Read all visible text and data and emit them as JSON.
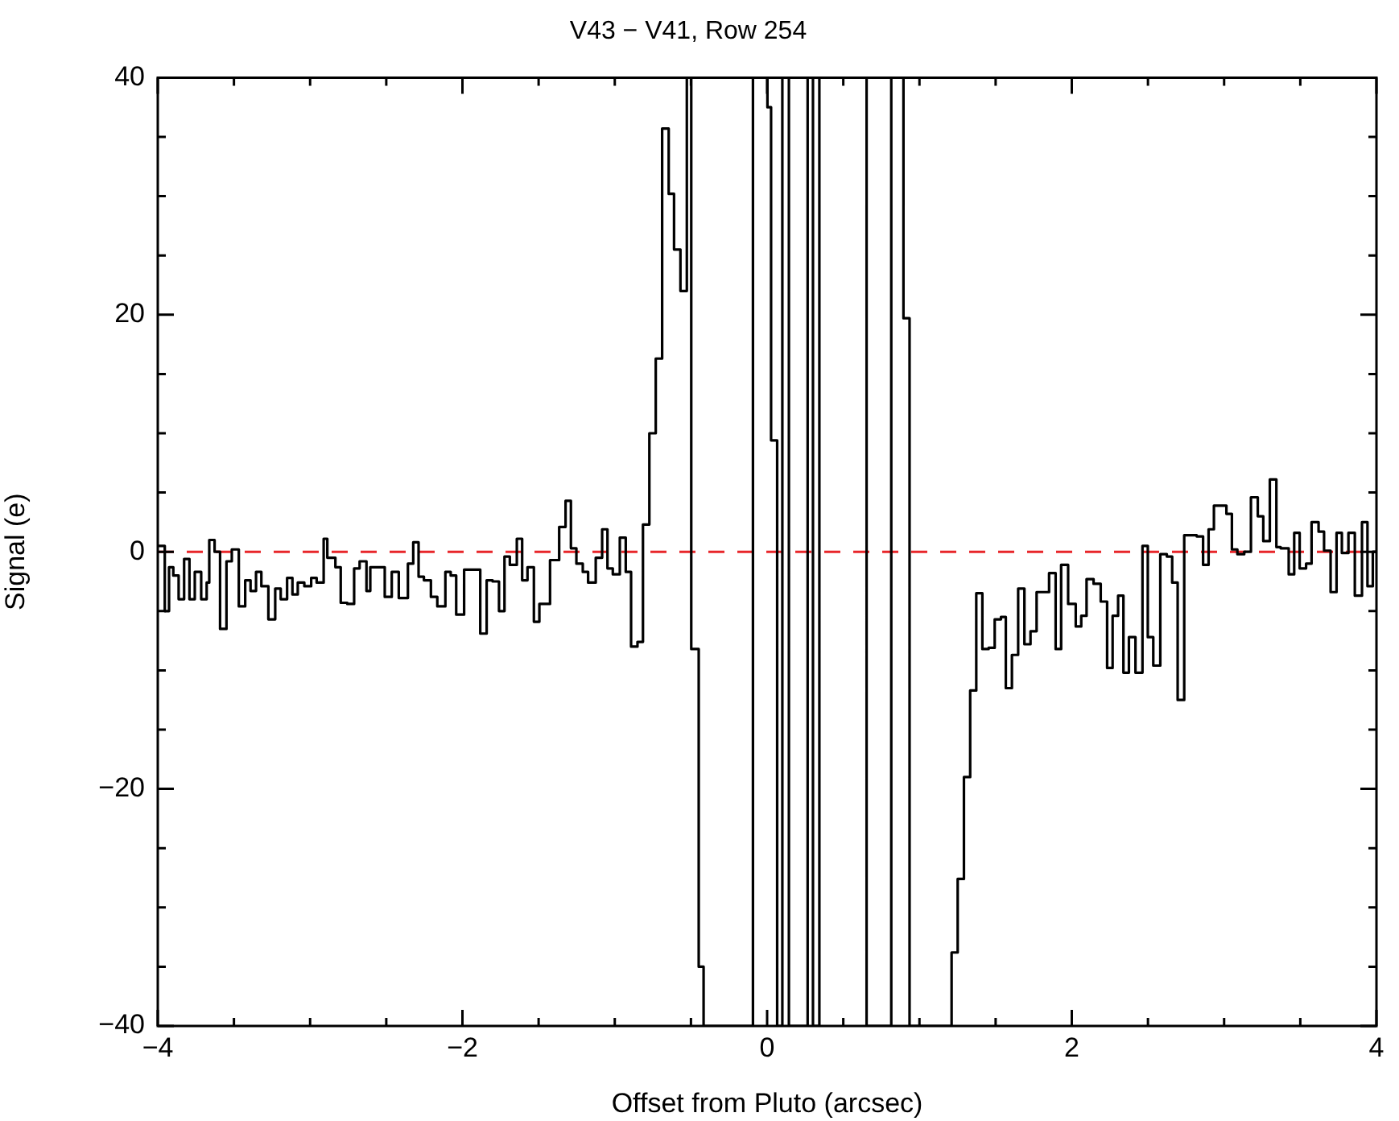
{
  "chart_data": {
    "type": "step",
    "title": "V43 − V41, Row 254",
    "xlabel": "Offset from Pluto (arcsec)",
    "ylabel": "Signal (e)",
    "xlim": [
      -4,
      4
    ],
    "ylim": [
      -40,
      40
    ],
    "xticks": [
      {
        "value": -4,
        "label": "−4"
      },
      {
        "value": -3.5,
        "label": null
      },
      {
        "value": -3,
        "label": null
      },
      {
        "value": -2.5,
        "label": null
      },
      {
        "value": -2,
        "label": "−2"
      },
      {
        "value": -1.5,
        "label": null
      },
      {
        "value": -1,
        "label": null
      },
      {
        "value": -0.5,
        "label": null
      },
      0,
      {
        "value": 0.5,
        "label": null
      },
      {
        "value": 1,
        "label": null
      },
      {
        "value": 1.5,
        "label": null
      },
      2,
      {
        "value": 2.5,
        "label": null
      },
      {
        "value": 3,
        "label": null
      },
      {
        "value": 3.5,
        "label": null
      },
      4
    ],
    "yticks": [
      {
        "value": -40,
        "label": "−40"
      },
      {
        "value": -35,
        "label": null
      },
      {
        "value": -30,
        "label": null
      },
      {
        "value": -25,
        "label": null
      },
      {
        "value": -20,
        "label": "−20"
      },
      {
        "value": -15,
        "label": null
      },
      {
        "value": -10,
        "label": null
      },
      {
        "value": -5,
        "label": null
      },
      0,
      {
        "value": 5,
        "label": null
      },
      {
        "value": 10,
        "label": null
      },
      {
        "value": 15,
        "label": null
      },
      20,
      {
        "value": 25,
        "label": null
      },
      {
        "value": 30,
        "label": null
      },
      {
        "value": 35,
        "label": null
      },
      40
    ],
    "grid": false,
    "ref_lines": [
      {
        "axis": "y",
        "value": 0,
        "color": "#e8262a",
        "line_style": "dashed"
      }
    ],
    "series": [
      {
        "color": "#000000",
        "x": [
          -4.0,
          -3.954,
          -3.926,
          -3.898,
          -3.863,
          -3.827,
          -3.792,
          -3.757,
          -3.715,
          -3.679,
          -3.662,
          -3.627,
          -3.591,
          -3.549,
          -3.514,
          -3.468,
          -3.426,
          -3.391,
          -3.355,
          -3.32,
          -3.274,
          -3.229,
          -3.193,
          -3.151,
          -3.116,
          -3.081,
          -3.038,
          -2.993,
          -2.957,
          -2.911,
          -2.887,
          -2.834,
          -2.799,
          -2.756,
          -2.711,
          -2.675,
          -2.63,
          -2.605,
          -2.57,
          -2.51,
          -2.464,
          -2.418,
          -2.358,
          -2.323,
          -2.288,
          -2.253,
          -2.207,
          -2.165,
          -2.112,
          -2.077,
          -2.041,
          -1.989,
          -1.936,
          -1.883,
          -1.841,
          -1.802,
          -1.76,
          -1.724,
          -1.689,
          -1.643,
          -1.608,
          -1.573,
          -1.531,
          -1.495,
          -1.425,
          -1.365,
          -1.323,
          -1.288,
          -1.252,
          -1.21,
          -1.175,
          -1.125,
          -1.083,
          -1.048,
          -1.013,
          -0.967,
          -0.928,
          -0.893,
          -0.851,
          -0.815,
          -0.773,
          -0.731,
          -0.689,
          -0.646,
          -0.611,
          -0.569,
          -0.527,
          -0.498,
          -0.449,
          -0.417,
          -0.093,
          0.002,
          0.026,
          0.066,
          0.1,
          0.143,
          0.266,
          0.301,
          0.343,
          0.653,
          0.815,
          0.895,
          0.935,
          1.211,
          1.251,
          1.292,
          1.333,
          1.373,
          1.413,
          1.454,
          1.494,
          1.535,
          1.567,
          1.607,
          1.648,
          1.689,
          1.729,
          1.769,
          1.851,
          1.894,
          1.93,
          1.976,
          2.026,
          2.062,
          2.097,
          2.143,
          2.19,
          2.232,
          2.268,
          2.304,
          2.339,
          2.375,
          2.418,
          2.464,
          2.499,
          2.535,
          2.581,
          2.624,
          2.659,
          2.695,
          2.738,
          2.82,
          2.862,
          2.898,
          2.933,
          3.015,
          3.051,
          3.087,
          3.132,
          3.176,
          3.221,
          3.257,
          3.3,
          3.343,
          3.371,
          3.424,
          3.46,
          3.496,
          3.538,
          3.574,
          3.62,
          3.656,
          3.699,
          3.738,
          3.773,
          3.816,
          3.858,
          3.905,
          3.941,
          3.976,
          4.0
        ],
        "values": [
          0.5,
          -5,
          -1.3,
          -2,
          -4,
          -0.6,
          -4,
          -1.7,
          -4,
          -2.6,
          1,
          0,
          -6.5,
          -0.8,
          0.2,
          -4.6,
          -2.4,
          -3.3,
          -1.7,
          -2.9,
          -5.7,
          -3.1,
          -4,
          -2.2,
          -3.6,
          -2.6,
          -2.9,
          -2.2,
          -2.6,
          1.1,
          -0.5,
          -1.3,
          -4.3,
          -4.4,
          -1.4,
          -0.8,
          -3.3,
          -1.3,
          -1.3,
          -3.8,
          -1.7,
          -3.9,
          -1,
          0.8,
          -2.1,
          -2.4,
          -3.8,
          -4.6,
          -1.7,
          -2,
          -5.3,
          -1.5,
          -1.5,
          -6.9,
          -2.4,
          -2.5,
          -5,
          -0.4,
          -1.1,
          1.1,
          -2.4,
          -1.3,
          -5.9,
          -4.4,
          -0.7,
          2.1,
          4.3,
          0.3,
          -1,
          -1.7,
          -2.6,
          -0.5,
          1.9,
          -1.4,
          -1.9,
          1.2,
          -1.7,
          -8,
          -7.6,
          2.3,
          10,
          16.3,
          35.7,
          30.2,
          25.5,
          22,
          40,
          -8.2,
          -35,
          -40,
          40,
          37.5,
          9.4,
          -40,
          40,
          -40,
          40,
          -40,
          40,
          -40,
          40,
          19.7,
          -40,
          -33.8,
          -27.6,
          -19,
          -11.7,
          -3.5,
          -8.2,
          -8.1,
          -5.7,
          -5.5,
          -11.5,
          -8.7,
          -3.1,
          -7.8,
          -6.7,
          -3.4,
          -1.8,
          -8.2,
          -1.1,
          -4.4,
          -6.3,
          -5.4,
          -2.3,
          -2.7,
          -4.2,
          -9.8,
          -5.4,
          -3.7,
          -10.2,
          -7.2,
          -10.2,
          0.5,
          -7.2,
          -9.6,
          -0.2,
          -0.4,
          -2.6,
          -12.5,
          1.4,
          1.3,
          -1.1,
          1.9,
          3.9,
          3.2,
          0.2,
          -0.2,
          0,
          4.6,
          3,
          0.9,
          6.1,
          0.4,
          0.3,
          -1.9,
          1.6,
          -1.4,
          -1,
          2.5,
          1.7,
          0.1,
          -3.4,
          1.6,
          -0.1,
          1.6,
          -3.7,
          2.5,
          -2.9,
          0,
          0
        ]
      }
    ]
  }
}
